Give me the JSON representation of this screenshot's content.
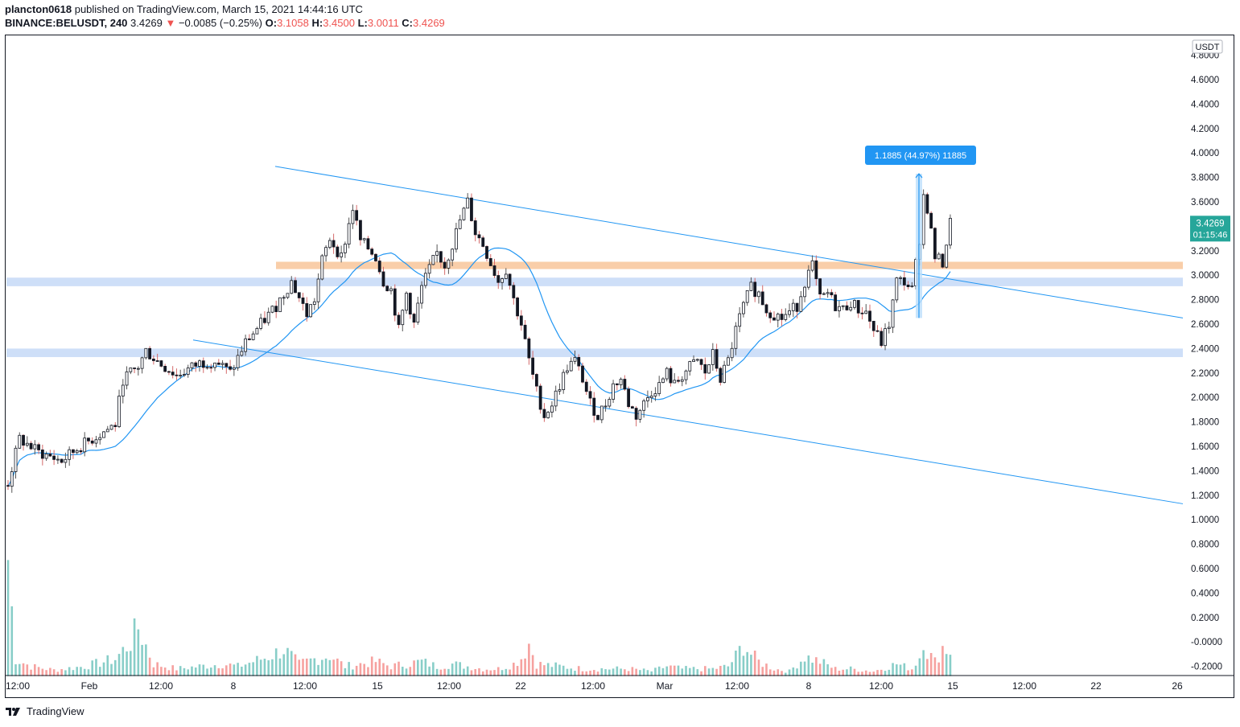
{
  "header": {
    "author": "plancton0618",
    "published": "published on TradingView.com, March 15, 2021 14:44:16 UTC",
    "symbol": "BINANCE:BELUSDT, 240",
    "last": "3.4269",
    "change": "−0.0085 (−0.25%)",
    "o_label": "O:",
    "o": "3.1058",
    "h_label": "H:",
    "h": "3.4500",
    "l_label": "L:",
    "l": "3.0011",
    "c_label": "C:",
    "c": "3.4269"
  },
  "footer": {
    "brand": "TradingView"
  },
  "colors": {
    "up": "#26a69a",
    "down": "#ef5350",
    "candle": "#131722",
    "ma": "#2196f3",
    "zone_orange": "#f8c9a0",
    "zone_blue": "#c9dbf7",
    "accent": "#2196f3",
    "price_tag": "#26a69a"
  },
  "chart_data": {
    "type": "candlestick",
    "currency": "USDT",
    "price_label": "3.4269",
    "countdown": "01:15:46",
    "measure_label": "1.1885 (44.97%) 11885",
    "ylim": [
      -0.28,
      4.85
    ],
    "y_ticks": [
      "4.8000",
      "4.6000",
      "4.4000",
      "4.2000",
      "4.0000",
      "3.8000",
      "3.6000",
      "3.4000",
      "3.2000",
      "3.0000",
      "2.8000",
      "2.6000",
      "2.4000",
      "2.2000",
      "2.0000",
      "1.8000",
      "1.6000",
      "1.4000",
      "1.2000",
      "1.0000",
      "0.8000",
      "0.6000",
      "0.4000",
      "0.2000",
      "-0.0000",
      "-0.2000"
    ],
    "x_ticks": [
      "12:00",
      "Feb",
      "12:00",
      "8",
      "12:00",
      "15",
      "12:00",
      "22",
      "12:00",
      "Mar",
      "12:00",
      "8",
      "12:00",
      "15",
      "12:00",
      "22",
      "26"
    ],
    "price_anchors": [
      [
        0,
        1.3
      ],
      [
        3,
        1.66
      ],
      [
        8,
        1.55
      ],
      [
        14,
        1.48
      ],
      [
        18,
        1.58
      ],
      [
        24,
        1.7
      ],
      [
        28,
        1.78
      ],
      [
        30,
        2.15
      ],
      [
        34,
        2.25
      ],
      [
        36,
        2.38
      ],
      [
        40,
        2.27
      ],
      [
        44,
        2.18
      ],
      [
        50,
        2.28
      ],
      [
        54,
        2.3
      ],
      [
        58,
        2.2
      ],
      [
        62,
        2.45
      ],
      [
        66,
        2.6
      ],
      [
        70,
        2.75
      ],
      [
        74,
        2.95
      ],
      [
        78,
        2.68
      ],
      [
        80,
        2.8
      ],
      [
        82,
        3.12
      ],
      [
        84,
        3.3
      ],
      [
        87,
        3.15
      ],
      [
        90,
        3.55
      ],
      [
        92,
        3.28
      ],
      [
        94,
        3.22
      ],
      [
        96,
        3.15
      ],
      [
        98,
        2.95
      ],
      [
        100,
        2.88
      ],
      [
        102,
        2.55
      ],
      [
        104,
        2.85
      ],
      [
        106,
        2.6
      ],
      [
        108,
        2.9
      ],
      [
        110,
        3.05
      ],
      [
        112,
        3.18
      ],
      [
        114,
        3.08
      ],
      [
        116,
        3.25
      ],
      [
        118,
        3.45
      ],
      [
        120,
        3.6
      ],
      [
        122,
        3.35
      ],
      [
        124,
        3.25
      ],
      [
        126,
        3.1
      ],
      [
        128,
        2.95
      ],
      [
        130,
        3.05
      ],
      [
        132,
        2.8
      ],
      [
        134,
        2.6
      ],
      [
        136,
        2.3
      ],
      [
        138,
        2.05
      ],
      [
        140,
        1.85
      ],
      [
        142,
        1.95
      ],
      [
        144,
        2.1
      ],
      [
        146,
        2.25
      ],
      [
        148,
        2.3
      ],
      [
        150,
        2.15
      ],
      [
        152,
        1.95
      ],
      [
        154,
        1.85
      ],
      [
        156,
        1.95
      ],
      [
        158,
        2.1
      ],
      [
        160,
        2.15
      ],
      [
        162,
        1.95
      ],
      [
        164,
        1.85
      ],
      [
        166,
        1.95
      ],
      [
        168,
        2.05
      ],
      [
        170,
        2.1
      ],
      [
        172,
        2.2
      ],
      [
        174,
        2.1
      ],
      [
        176,
        2.18
      ],
      [
        178,
        2.25
      ],
      [
        180,
        2.3
      ],
      [
        182,
        2.2
      ],
      [
        184,
        2.35
      ],
      [
        186,
        2.15
      ],
      [
        188,
        2.3
      ],
      [
        190,
        2.55
      ],
      [
        192,
        2.75
      ],
      [
        194,
        2.9
      ],
      [
        196,
        2.85
      ],
      [
        198,
        2.72
      ],
      [
        200,
        2.68
      ],
      [
        202,
        2.65
      ],
      [
        204,
        2.7
      ],
      [
        206,
        2.75
      ],
      [
        208,
        2.95
      ],
      [
        210,
        3.08
      ],
      [
        212,
        2.8
      ],
      [
        214,
        2.85
      ],
      [
        216,
        2.75
      ],
      [
        218,
        2.72
      ],
      [
        220,
        2.78
      ],
      [
        222,
        2.72
      ],
      [
        224,
        2.7
      ],
      [
        226,
        2.55
      ],
      [
        228,
        2.45
      ],
      [
        230,
        2.6
      ],
      [
        232,
        2.95
      ],
      [
        234,
        2.95
      ],
      [
        236,
        2.88
      ],
      [
        238,
        3.3
      ],
      [
        239,
        3.65
      ],
      [
        240,
        3.55
      ],
      [
        242,
        3.15
      ],
      [
        244,
        3.1
      ],
      [
        246,
        3.43
      ]
    ],
    "volume_anchors": [
      [
        0,
        0.95
      ],
      [
        2,
        0.14
      ],
      [
        6,
        0.08
      ],
      [
        12,
        0.05
      ],
      [
        20,
        0.08
      ],
      [
        28,
        0.14
      ],
      [
        32,
        0.28
      ],
      [
        34,
        0.4
      ],
      [
        38,
        0.1
      ],
      [
        44,
        0.06
      ],
      [
        50,
        0.08
      ],
      [
        56,
        0.1
      ],
      [
        60,
        0.08
      ],
      [
        64,
        0.12
      ],
      [
        68,
        0.16
      ],
      [
        72,
        0.22
      ],
      [
        76,
        0.1
      ],
      [
        80,
        0.14
      ],
      [
        84,
        0.17
      ],
      [
        88,
        0.08
      ],
      [
        92,
        0.1
      ],
      [
        96,
        0.12
      ],
      [
        100,
        0.08
      ],
      [
        104,
        0.1
      ],
      [
        108,
        0.12
      ],
      [
        112,
        0.08
      ],
      [
        116,
        0.1
      ],
      [
        120,
        0.08
      ],
      [
        124,
        0.06
      ],
      [
        128,
        0.06
      ],
      [
        132,
        0.1
      ],
      [
        134,
        0.15
      ],
      [
        136,
        0.27
      ],
      [
        138,
        0.1
      ],
      [
        144,
        0.08
      ],
      [
        150,
        0.06
      ],
      [
        156,
        0.06
      ],
      [
        162,
        0.06
      ],
      [
        168,
        0.04
      ],
      [
        172,
        0.08
      ],
      [
        176,
        0.06
      ],
      [
        180,
        0.06
      ],
      [
        184,
        0.06
      ],
      [
        188,
        0.08
      ],
      [
        190,
        0.16
      ],
      [
        192,
        0.26
      ],
      [
        194,
        0.18
      ],
      [
        196,
        0.12
      ],
      [
        200,
        0.06
      ],
      [
        204,
        0.04
      ],
      [
        208,
        0.16
      ],
      [
        212,
        0.12
      ],
      [
        216,
        0.06
      ],
      [
        220,
        0.06
      ],
      [
        226,
        0.04
      ],
      [
        230,
        0.08
      ],
      [
        232,
        0.1
      ],
      [
        234,
        0.08
      ],
      [
        236,
        0.06
      ],
      [
        238,
        0.16
      ],
      [
        239,
        0.34
      ],
      [
        240,
        0.2
      ],
      [
        242,
        0.12
      ],
      [
        244,
        0.24
      ],
      [
        246,
        0.2
      ]
    ]
  }
}
